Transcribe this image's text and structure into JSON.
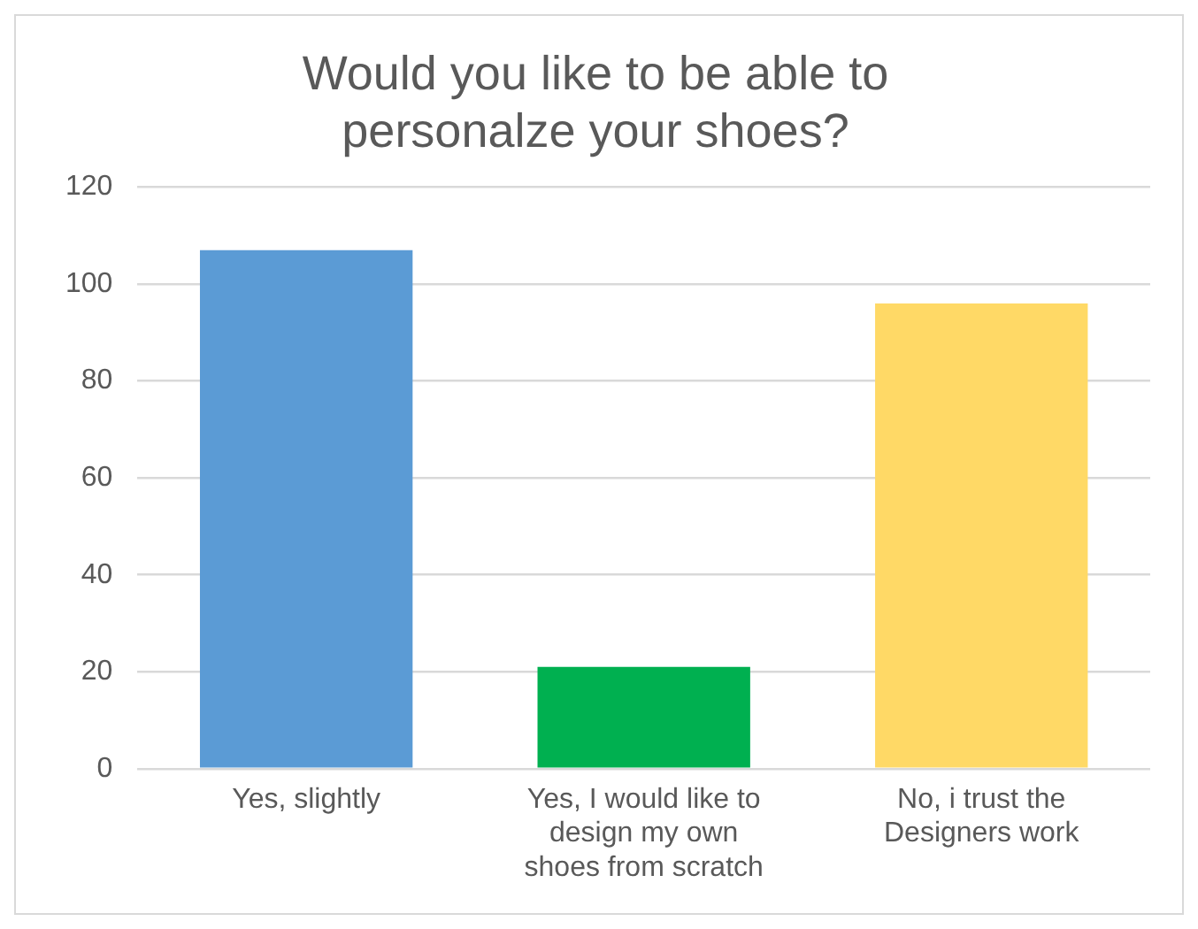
{
  "chart_data": {
    "type": "bar",
    "title": "Would you like to be able to personalze your shoes?",
    "categories": [
      "Yes, slightly",
      "Yes, I would like to design my own shoes from scratch",
      "No, i trust the Designers work"
    ],
    "values": [
      107,
      21,
      96
    ],
    "colors": [
      "#5b9bd5",
      "#00b050",
      "#ffd966"
    ],
    "ylim": [
      0,
      120
    ],
    "yticks": [
      0,
      20,
      40,
      60,
      80,
      100,
      120
    ],
    "grid": "y"
  }
}
